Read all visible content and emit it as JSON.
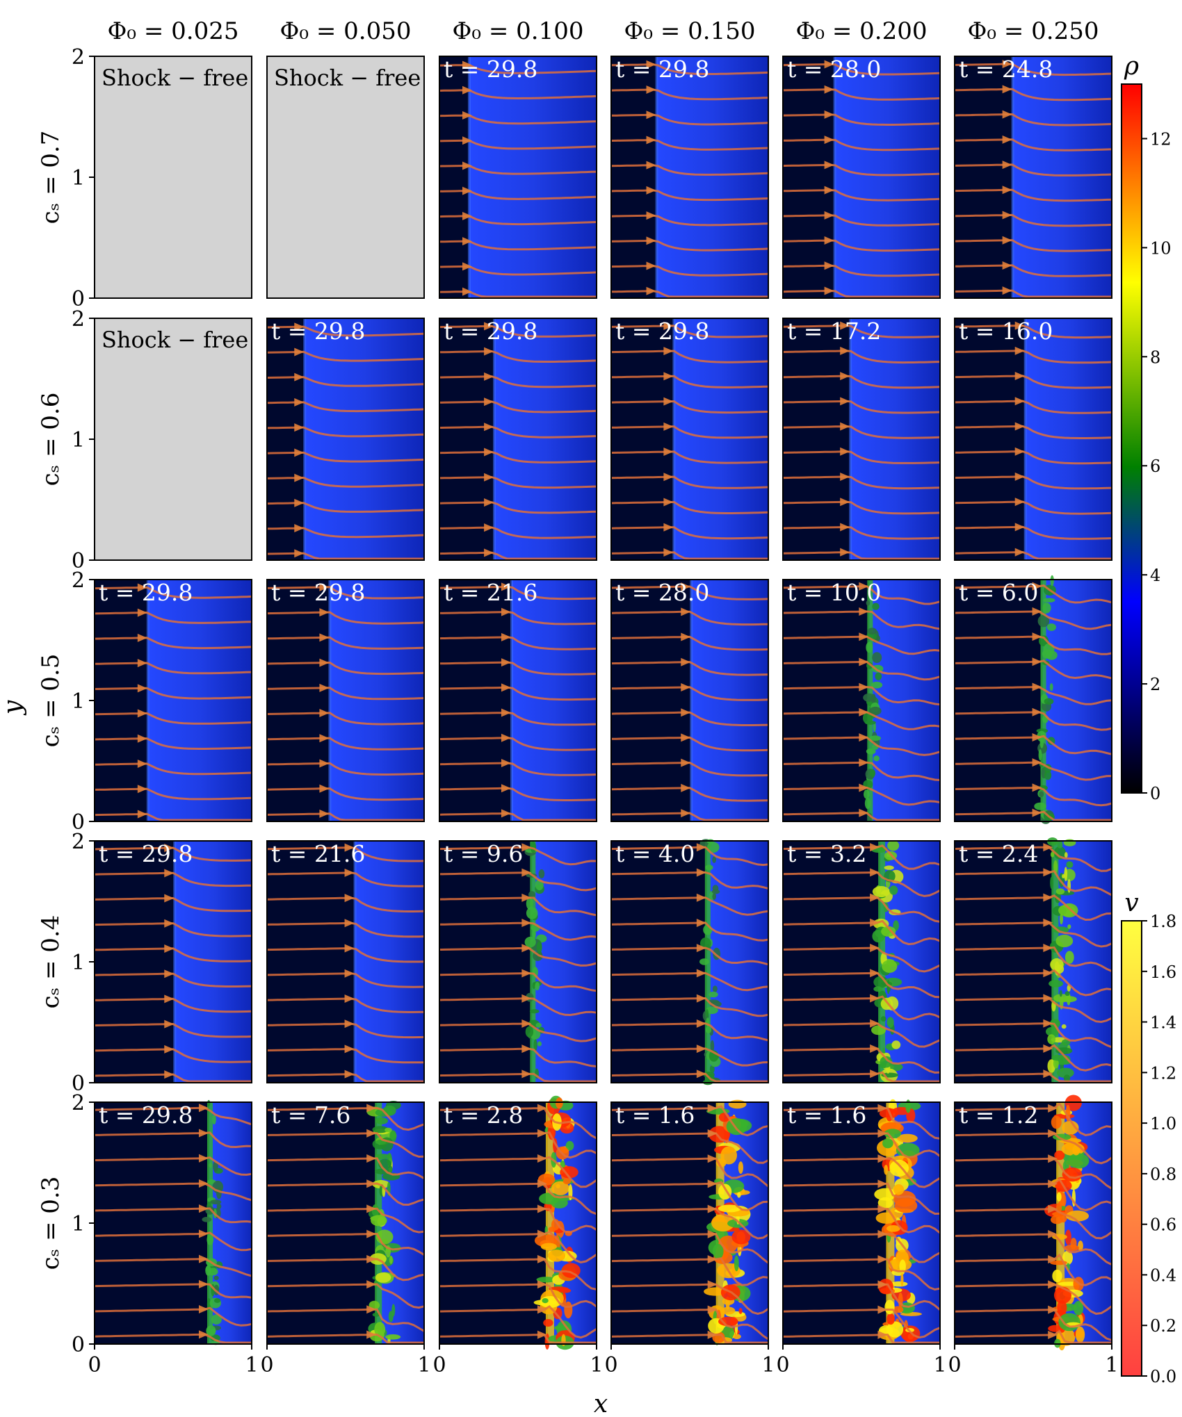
{
  "chart_data": {
    "type": "heatmap",
    "layout": "grid of simulation snapshots (rows: c_s, columns: Phi_0) with velocity streamlines",
    "xlabel": "x",
    "ylabel": "y",
    "xlim": [
      0,
      1
    ],
    "ylim": [
      0,
      2
    ],
    "x_ticks": [
      "0",
      "1"
    ],
    "y_ticks": [
      "0",
      "1",
      "2"
    ],
    "col_labels": [
      "Φ₀ = 0.025",
      "Φ₀ = 0.050",
      "Φ₀ = 0.100",
      "Φ₀ = 0.150",
      "Φ₀ = 0.200",
      "Φ₀ = 0.250"
    ],
    "row_labels": [
      "cₛ = 0.7",
      "cₛ = 0.6",
      "cₛ = 0.5",
      "cₛ = 0.4",
      "cₛ = 0.3"
    ],
    "phi0": [
      0.025,
      0.05,
      0.1,
      0.15,
      0.2,
      0.25
    ],
    "cs": [
      0.7,
      0.6,
      0.5,
      0.4,
      0.3
    ],
    "panels": [
      [
        "Shock − free",
        "Shock − free",
        "t = 29.8",
        "t = 29.8",
        "t = 28.0",
        "t = 24.8"
      ],
      [
        "Shock − free",
        "t = 29.8",
        "t = 29.8",
        "t = 29.8",
        "t = 17.2",
        "t = 16.0"
      ],
      [
        "t = 29.8",
        "t = 29.8",
        "t = 21.6",
        "t = 28.0",
        "t = 10.0",
        "t = 6.0"
      ],
      [
        "t = 29.8",
        "t = 21.6",
        "t = 9.6",
        "t = 4.0",
        "t = 3.2",
        "t = 2.4"
      ],
      [
        "t = 29.8",
        "t = 7.6",
        "t = 2.8",
        "t = 1.6",
        "t = 1.6",
        "t = 1.2"
      ]
    ],
    "shock_x": [
      [
        null,
        null,
        0.19,
        0.29,
        0.33,
        0.37
      ],
      [
        null,
        0.24,
        0.35,
        0.4,
        0.43,
        0.45
      ],
      [
        0.34,
        0.4,
        0.46,
        0.51,
        0.55,
        0.56
      ],
      [
        0.51,
        0.56,
        0.59,
        0.61,
        0.62,
        0.63
      ],
      [
        0.73,
        0.7,
        0.69,
        0.68,
        0.67,
        0.66
      ]
    ],
    "turbulence": [
      [
        0,
        0,
        0,
        0,
        0,
        0
      ],
      [
        0,
        0,
        0,
        0,
        0,
        0
      ],
      [
        0,
        0,
        0,
        0,
        1,
        1
      ],
      [
        0,
        0,
        1,
        1,
        2,
        2
      ],
      [
        1,
        2,
        3,
        3,
        3,
        3
      ]
    ],
    "colorbars": [
      {
        "label": "ρ",
        "min": 0,
        "max": 13,
        "ticks": [
          "0",
          "2",
          "4",
          "6",
          "8",
          "10",
          "12"
        ],
        "stops": [
          "#000000",
          "#0000ff",
          "#008000",
          "#ffff00",
          "#ff0000"
        ]
      },
      {
        "label": "v",
        "min": 0,
        "max": 1.8,
        "ticks": [
          "0.0",
          "0.2",
          "0.4",
          "0.6",
          "0.8",
          "1.0",
          "1.2",
          "1.4",
          "1.6",
          "1.8"
        ],
        "stops": [
          "#ff4040",
          "#ffa040",
          "#ffff40"
        ]
      }
    ],
    "colors": {
      "shock_free_fill": "#d3d3d3",
      "streamline": "#e0703a",
      "preshock": "#00082e",
      "postshock": "#1f3af0"
    }
  }
}
